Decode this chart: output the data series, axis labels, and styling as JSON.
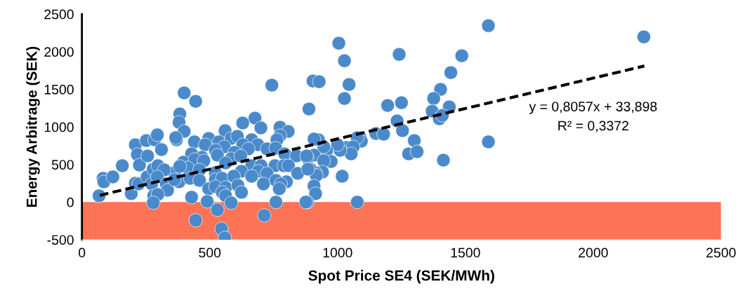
{
  "chart_data": {
    "type": "scatter",
    "xlabel": "Spot Price SE4 (SEK/MWh)",
    "ylabel": "Energy Arbitrage (SEK)",
    "xlim": [
      0,
      2500
    ],
    "ylim": [
      -500,
      2500
    ],
    "xticks": [
      0,
      500,
      1000,
      1500,
      2000,
      2500
    ],
    "yticks": [
      -500,
      0,
      500,
      1000,
      1500,
      2000,
      2500
    ],
    "grid": false,
    "legend": false,
    "marker": "circle",
    "annotations": [
      "y = 0,8057x + 33,898",
      "R² = 0,3372"
    ],
    "bands": [
      {
        "axis": "y",
        "from": -500,
        "to": 0,
        "color": "#fc7356"
      }
    ],
    "series": [
      {
        "color": "#4a8acb",
        "x": [
          1005,
          1027,
          1045,
          1027,
          904,
          928,
          888,
          1241,
          1486,
          1443,
          1403,
          1376,
          1196,
          1250,
          1370,
          1437,
          1398,
          1410,
          1233,
          1254,
          1300,
          1278,
          1311,
          1414,
          1150,
          1180,
          1088,
          1093,
          1077,
          1037,
          1061,
          1053,
          1010,
          1000,
          957,
          946,
          925,
          908,
          908,
          882,
          975,
          946,
          941,
          914,
          893,
          917,
          908,
          914,
          882,
          1018,
          1077,
          1590,
          2198,
          1590,
          743,
          400,
          445,
          383,
          380,
          677,
          629,
          700,
          400,
          560,
          775,
          807,
          775,
          370,
          440,
          496,
          482,
          536,
          584,
          608,
          664,
          763,
          629,
          688,
          557,
          724,
          758,
          793,
          522,
          597,
          429,
          469,
          530,
          651,
          839,
          879,
          397,
          442,
          477,
          584,
          621,
          413,
          562,
          664,
          701,
          755,
          790,
          808,
          362,
          460,
          522,
          624,
          690,
          724,
          844,
          884,
          380,
          423,
          460,
          522,
          549,
          594,
          664,
          759,
          800,
          778,
          496,
          522,
          562,
          610,
          710,
          772,
          549,
          624,
          562,
          429,
          490,
          584,
          759,
          876,
          530,
          713,
          445,
          546,
          559,
          67,
          83,
          86,
          121,
          158,
          193,
          209,
          222,
          209,
          217,
          225,
          252,
          284,
          295,
          257,
          311,
          255,
          273,
          279,
          297,
          322,
          295,
          330,
          335,
          281,
          297,
          279,
          367,
          383,
          362
        ],
        "values": [
          2113,
          1880,
          1564,
          1378,
          1610,
          1601,
          1238,
          1964,
          1946,
          1722,
          1499,
          1378,
          1285,
          1322,
          1210,
          1266,
          1108,
          1154,
          1080,
          950,
          819,
          642,
          670,
          558,
          912,
          903,
          856,
          810,
          856,
          726,
          735,
          642,
          689,
          763,
          680,
          735,
          829,
          838,
          624,
          587,
          540,
          549,
          400,
          391,
          438,
          354,
          214,
          112,
          0,
          344,
          0,
          2346,
          2197,
          801,
          1555,
          1452,
          1340,
          1173,
          1061,
          1117,
          1052,
          987,
          940,
          950,
          996,
          940,
          884,
          829,
          801,
          847,
          763,
          801,
          847,
          875,
          829,
          829,
          763,
          763,
          735,
          708,
          717,
          642,
          689,
          661,
          642,
          596,
          624,
          708,
          614,
          614,
          531,
          568,
          549,
          577,
          614,
          456,
          521,
          484,
          484,
          484,
          484,
          484,
          391,
          428,
          391,
          410,
          410,
          382,
          382,
          438,
          270,
          316,
          288,
          298,
          316,
          344,
          344,
          288,
          270,
          242,
          177,
          205,
          195,
          223,
          242,
          177,
          130,
          130,
          84,
          65,
          9,
          -9,
          0,
          0,
          -102,
          -177,
          -242,
          -354,
          -475,
          84,
          316,
          270,
          335,
          484,
          112,
          251,
          242,
          763,
          633,
          493,
          819,
          829,
          894,
          614,
          698,
          335,
          242,
          438,
          484,
          428,
          335,
          242,
          158,
          84,
          102,
          -9,
          857,
          475,
          298
        ]
      },
      {
        "type": "line",
        "color": "#000000",
        "line_style": "dashed",
        "marker": "none",
        "x": [
          70,
          2200
        ],
        "values": [
          90,
          1810
        ]
      }
    ]
  }
}
